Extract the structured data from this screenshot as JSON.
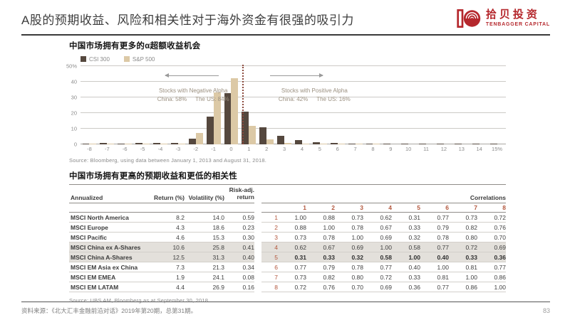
{
  "colors": {
    "accent_red": "#b5282d",
    "bar_dark": "#55483e",
    "bar_light": "#dcc9a6",
    "highlight_bg": "#e3e0db",
    "corr_number": "#b3573d"
  },
  "header": {
    "title": "A股的预期收益、风险和相关性对于海外资金有很强的吸引力",
    "logo": {
      "cn": "拾贝投资",
      "en": "TENBAGGER CAPITAL"
    }
  },
  "chart_section": {
    "title": "中国市场拥有更多的α超额收益机会",
    "annotations": {
      "negative": {
        "title": "Stocks with Negative Alpha",
        "china": "China: 58%",
        "us": "The US: 84%"
      },
      "positive": {
        "title": "Stocks with Positive Alpha",
        "china": "China: 42%",
        "us": "The US: 16%"
      }
    },
    "source": "Source: Bloomberg, using data between January 1, 2013 and August 31, 2018."
  },
  "chart_data": {
    "type": "bar",
    "title": "中国市场拥有更多的α超额收益机会",
    "categories": [
      "-8",
      "-7",
      "-6",
      "-5",
      "-4",
      "-3",
      "-2",
      "-1",
      "0",
      "1",
      "2",
      "3",
      "4",
      "5",
      "6",
      "7",
      "8",
      "9",
      "10",
      "11",
      "12",
      "13",
      "14",
      "15%"
    ],
    "series": [
      {
        "name": "CSI 300",
        "color": "#55483e",
        "values": [
          0.4,
          1.1,
          0.5,
          0.7,
          1.1,
          0.8,
          3.6,
          17.9,
          32.8,
          20.8,
          11.0,
          5.6,
          2.9,
          1.5,
          0.8,
          0.4,
          0.3,
          0.3,
          0.2,
          0.2,
          0.2,
          0.2,
          0.1,
          0.1
        ]
      },
      {
        "name": "S&P 500",
        "color": "#dcc9a6",
        "values": [
          0.1,
          0.1,
          0.1,
          0.1,
          0.2,
          0.5,
          7.4,
          33.4,
          42.4,
          11.7,
          3.4,
          0.7,
          0.3,
          0.2,
          0.1,
          0.1,
          0.1,
          0,
          0,
          0,
          0,
          0,
          0,
          0
        ]
      }
    ],
    "xlabel": "",
    "ylabel": "",
    "ylim": [
      0,
      50
    ],
    "yticks": [
      "0",
      "10",
      "20",
      "30",
      "40",
      "50%"
    ],
    "grid": true,
    "legend_position": "top-left"
  },
  "table_section": {
    "title": "中国市场拥有更高的预期收益和更低的相关性",
    "headers": {
      "annualized": "Annualized",
      "return": "Return (%)",
      "volatility": "Volatility (%)",
      "risk_adj": "Risk-adj.\nreturn",
      "correlations": "Correlations"
    },
    "corr_columns": [
      "1",
      "2",
      "3",
      "4",
      "5",
      "6",
      "7",
      "8"
    ],
    "rows": [
      {
        "num": "1",
        "name": "MSCI North America",
        "return": "8.2",
        "volatility": "14.0",
        "risk_adj": "0.59",
        "corr": [
          "1.00",
          "0.88",
          "0.73",
          "0.62",
          "0.31",
          "0.77",
          "0.73",
          "0.72"
        ],
        "highlight": false,
        "corr_bold": false
      },
      {
        "num": "2",
        "name": "MSCI Europe",
        "return": "4.3",
        "volatility": "18.6",
        "risk_adj": "0.23",
        "corr": [
          "0.88",
          "1.00",
          "0.78",
          "0.67",
          "0.33",
          "0.79",
          "0.82",
          "0.76"
        ],
        "highlight": false,
        "corr_bold": false
      },
      {
        "num": "3",
        "name": "MSCI Pacific",
        "return": "4.6",
        "volatility": "15.3",
        "risk_adj": "0.30",
        "corr": [
          "0.73",
          "0.78",
          "1.00",
          "0.69",
          "0.32",
          "0.78",
          "0.80",
          "0.70"
        ],
        "highlight": false,
        "corr_bold": false
      },
      {
        "num": "4",
        "name": "MSCI China ex A-Shares",
        "return": "10.6",
        "volatility": "25.8",
        "risk_adj": "0.41",
        "corr": [
          "0.62",
          "0.67",
          "0.69",
          "1.00",
          "0.58",
          "0.77",
          "0.72",
          "0.69"
        ],
        "highlight": true,
        "corr_bold": false
      },
      {
        "num": "5",
        "name": "MSCI China A-Shares",
        "return": "12.5",
        "volatility": "31.3",
        "risk_adj": "0.40",
        "corr": [
          "0.31",
          "0.33",
          "0.32",
          "0.58",
          "1.00",
          "0.40",
          "0.33",
          "0.36"
        ],
        "highlight": true,
        "corr_bold": true
      },
      {
        "num": "6",
        "name": "MSCI EM Asia ex China",
        "return": "7.3",
        "volatility": "21.3",
        "risk_adj": "0.34",
        "corr": [
          "0.77",
          "0.79",
          "0.78",
          "0.77",
          "0.40",
          "1.00",
          "0.81",
          "0.77"
        ],
        "highlight": false,
        "corr_bold": false
      },
      {
        "num": "7",
        "name": "MSCI EM EMEA",
        "return": "1.9",
        "volatility": "24.1",
        "risk_adj": "0.08",
        "corr": [
          "0.73",
          "0.82",
          "0.80",
          "0.72",
          "0.33",
          "0.81",
          "1.00",
          "0.86"
        ],
        "highlight": false,
        "corr_bold": false
      },
      {
        "num": "8",
        "name": "MSCI EM LATAM",
        "return": "4.4",
        "volatility": "26.9",
        "risk_adj": "0.16",
        "corr": [
          "0.72",
          "0.76",
          "0.70",
          "0.69",
          "0.36",
          "0.77",
          "0.86",
          "1.00"
        ],
        "highlight": false,
        "corr_bold": false
      }
    ],
    "source": "Source: UBS AM, Bloomberg as at September 30, 2018."
  },
  "footer": {
    "source": "资料来源：《北大汇丰金融前沿对话》2019年第20期，总第31期。",
    "page": "83"
  }
}
